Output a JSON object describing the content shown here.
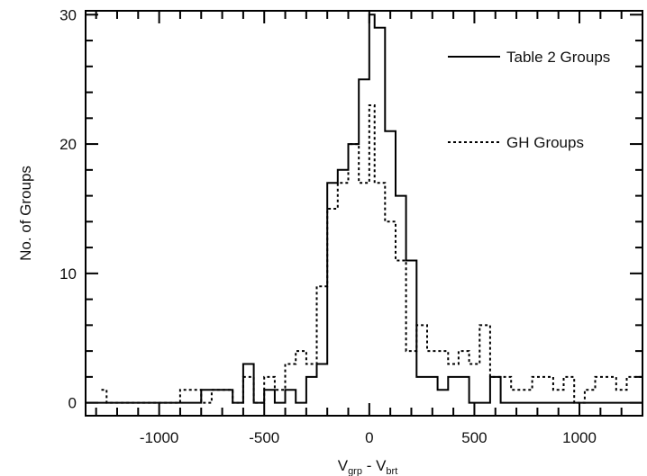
{
  "chart_data": {
    "type": "step-histogram",
    "title": "",
    "xlabel": "V",
    "xlabel_sub1": "grp",
    "xlabel_mid": " - V",
    "xlabel_sub2": "brt",
    "ylabel": "No. of Groups",
    "xlim": [
      -1350,
      1300
    ],
    "ylim": [
      -1,
      30.3
    ],
    "x_ticks": [
      -1000,
      -500,
      0,
      500,
      1000
    ],
    "y_ticks": [
      0,
      10,
      20,
      30
    ],
    "x_tick_labels": [
      "-1000",
      "-500",
      "0",
      "500",
      "1000"
    ],
    "y_tick_labels": [
      "0",
      "10",
      "20",
      "30"
    ],
    "legend_position": "top-right",
    "series": [
      {
        "name": "Table 2 Groups",
        "style": "solid",
        "bin_edges": [
          -1350,
          -850,
          -800,
          -700,
          -650,
          -600,
          -550,
          -500,
          -450,
          -400,
          -350,
          -300,
          -250,
          -200,
          -150,
          -100,
          -50,
          0,
          25,
          75,
          125,
          175,
          225,
          275,
          325,
          375,
          425,
          475,
          525,
          575,
          625,
          1300
        ],
        "values": [
          0,
          0,
          1,
          1,
          0,
          3,
          0,
          1,
          0,
          1,
          0,
          2,
          3,
          17,
          18,
          20,
          25,
          30,
          29,
          21,
          16,
          11,
          2,
          2,
          1,
          2,
          2,
          0,
          0,
          2,
          0
        ]
      },
      {
        "name": "GH Groups",
        "style": "dotted",
        "bin_edges": [
          -1275,
          -1250,
          -1225,
          -900,
          -850,
          -800,
          -750,
          -700,
          -650,
          -600,
          -550,
          -500,
          -450,
          -400,
          -350,
          -300,
          -250,
          -200,
          -150,
          -100,
          -50,
          0,
          25,
          75,
          125,
          175,
          225,
          275,
          325,
          375,
          425,
          475,
          525,
          575,
          625,
          675,
          725,
          775,
          825,
          875,
          925,
          975,
          1025,
          1075,
          1125,
          1175,
          1225,
          1300
        ],
        "values": [
          1,
          0,
          0,
          1,
          1,
          0,
          1,
          1,
          0,
          2,
          0,
          2,
          1,
          3,
          4,
          3,
          9,
          15,
          17,
          20,
          17,
          23,
          17,
          14,
          11,
          4,
          6,
          4,
          4,
          3,
          4,
          3,
          6,
          2,
          2,
          1,
          1,
          2,
          2,
          1,
          2,
          0,
          1,
          2,
          2,
          1,
          2
        ]
      }
    ]
  }
}
